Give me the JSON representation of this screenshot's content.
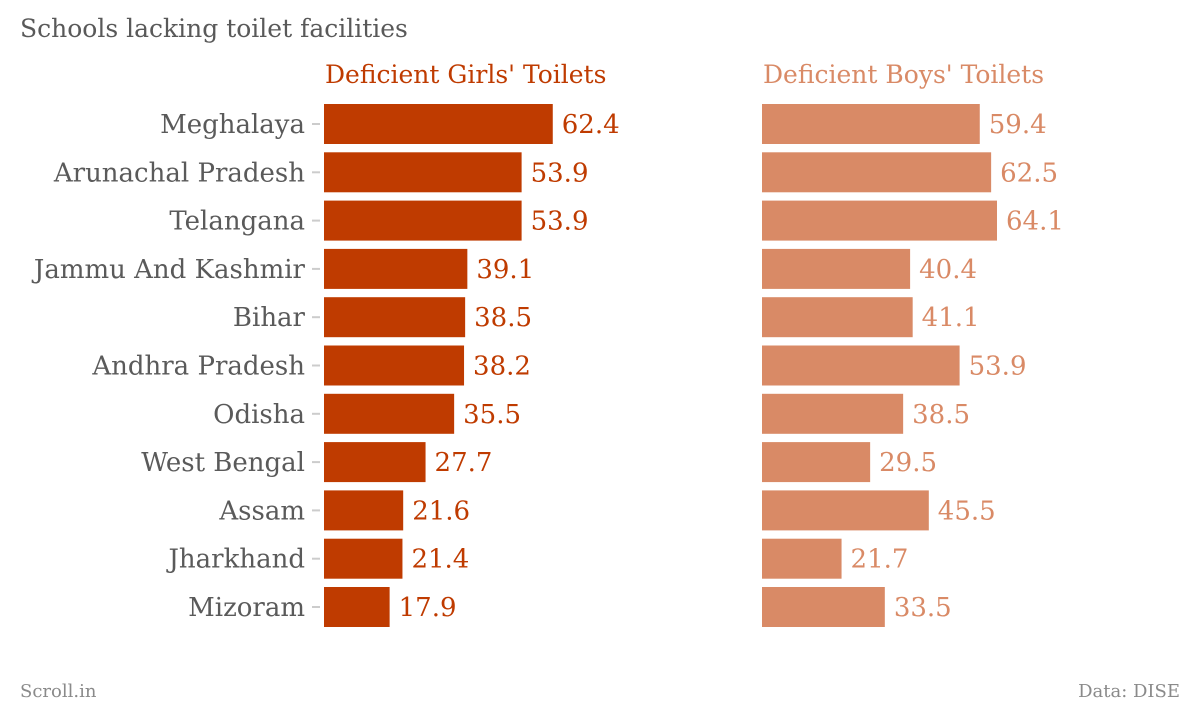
{
  "title": "Schools lacking toilet facilities",
  "footer": {
    "source_left": "Scroll.in",
    "source_right": "Data: DISE"
  },
  "colors": {
    "girls": "#bf3b00",
    "boys": "#d98a66",
    "category_text": "#5a5a5a",
    "tick": "#cccccc"
  },
  "chart_data": {
    "type": "bar",
    "orientation": "horizontal",
    "title": "Schools lacking toilet facilities",
    "categories": [
      "Meghalaya",
      "Arunachal Pradesh",
      "Telangana",
      "Jammu And Kashmir",
      "Bihar",
      "Andhra Pradesh",
      "Odisha",
      "West Bengal",
      "Assam",
      "Jharkhand",
      "Mizoram"
    ],
    "series": [
      {
        "name": "Deficient Girls' Toilets",
        "values": [
          62.4,
          53.9,
          53.9,
          39.1,
          38.5,
          38.2,
          35.5,
          27.7,
          21.6,
          21.4,
          17.9
        ]
      },
      {
        "name": "Deficient Boys' Toilets",
        "values": [
          59.4,
          62.5,
          64.1,
          40.4,
          41.1,
          53.9,
          38.5,
          29.5,
          45.5,
          21.7,
          33.5
        ]
      }
    ],
    "xlim": [
      0,
      64.1
    ],
    "grid": false,
    "legend": "none"
  }
}
